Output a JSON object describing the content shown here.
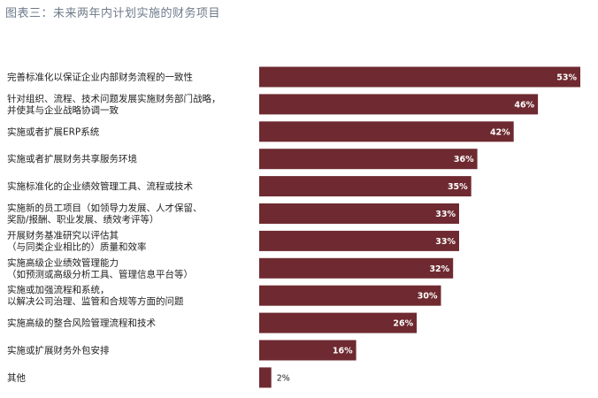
{
  "chart_data": {
    "type": "bar",
    "orientation": "horizontal",
    "title": "图表三：未来两年内计划实施的财务项目",
    "bar_color": "#6e2a30",
    "title_color": "#6e7b8a",
    "value_suffix": "%",
    "categories": [
      [
        "完善标准化以保证企业内部财务流程的一致性"
      ],
      [
        "针对组织、流程、技术问题发展实施财务部门战略，",
        "并使其与企业战略协调一致"
      ],
      [
        "实施或者扩展ERP系统"
      ],
      [
        "实施或者扩展财务共享服务环境"
      ],
      [
        "实施标准化的企业绩效管理工具、流程或技术"
      ],
      [
        "实施新的员工项目（如领导力发展、人才保留、",
        "奖励/报酬、职业发展、绩效考评等）"
      ],
      [
        "开展财务基准研究以评估其",
        "（与同类企业相比的）质量和效率"
      ],
      [
        "实施高级企业绩效管理能力",
        "（如预测或高级分析工具、管理信息平台等）"
      ],
      [
        "实施或加强流程和系统，",
        "以解决公司治理、监管和合规等方面的问题"
      ],
      [
        "实施高级的整合风险管理流程和技术"
      ],
      [
        "实施或扩展财务外包安排"
      ],
      [
        "其他"
      ]
    ],
    "values": [
      53,
      46,
      42,
      36,
      35,
      33,
      33,
      32,
      30,
      26,
      16,
      2
    ],
    "value_labels": [
      "53%",
      "46%",
      "42%",
      "36%",
      "35%",
      "33%",
      "33%",
      "32%",
      "30%",
      "26%",
      "16%",
      "2%"
    ],
    "xlim": [
      0,
      53
    ],
    "grid": false,
    "legend": "none"
  }
}
